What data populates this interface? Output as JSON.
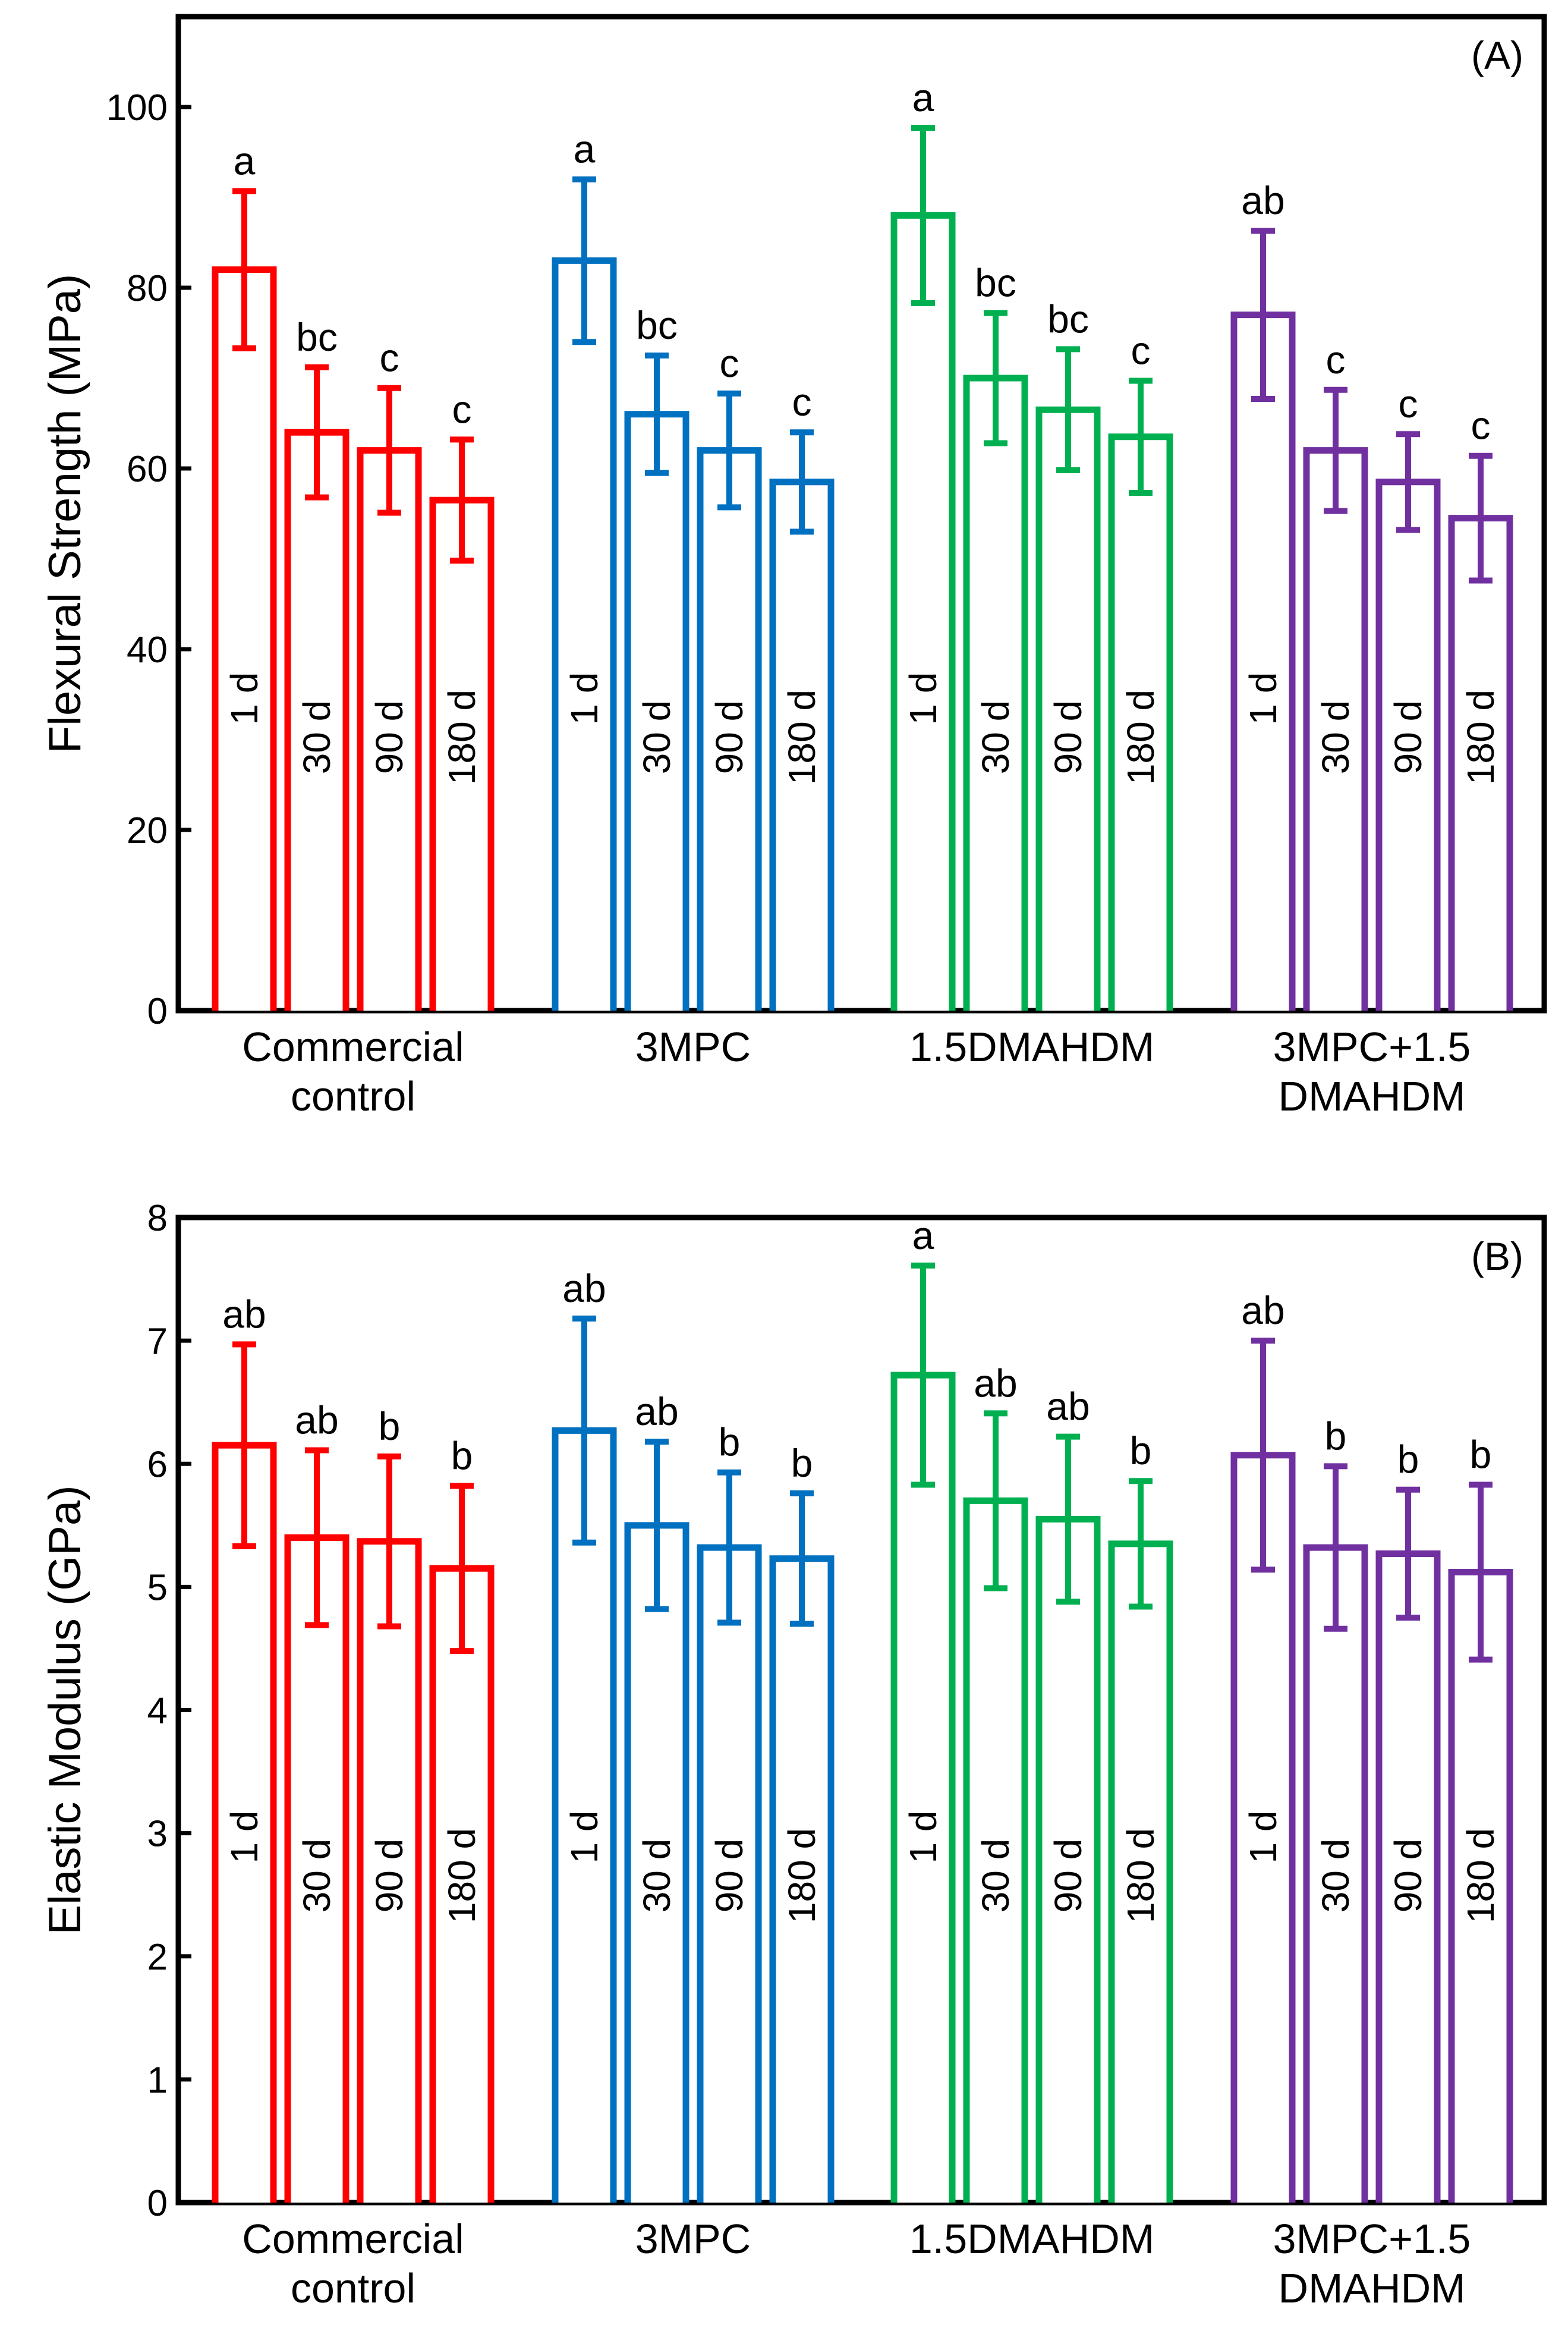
{
  "colors": {
    "Commercial control": "#ff0000",
    "3MPC": "#0070c0",
    "1.5DMAHDM": "#00b050",
    "3MPC+1.5 DMAHDM": "#7030a0"
  },
  "chart_data": [
    {
      "type": "bar",
      "panel": "(A)",
      "ylabel": "Flexural Strength (MPa)",
      "ylim": [
        0,
        110
      ],
      "yticks": [
        "0",
        "20",
        "40",
        "60",
        "80",
        "100"
      ],
      "groups": [
        {
          "name_lines": [
            "Commercial",
            "control"
          ],
          "color_key": "Commercial control"
        },
        {
          "name_lines": [
            "3MPC"
          ],
          "color_key": "3MPC"
        },
        {
          "name_lines": [
            "1.5DMAHDM"
          ],
          "color_key": "1.5DMAHDM"
        },
        {
          "name_lines": [
            "3MPC+1.5",
            "DMAHDM"
          ],
          "color_key": "3MPC+1.5 DMAHDM"
        }
      ],
      "bar_labels": [
        "1 d",
        "30 d",
        "90 d",
        "180 d"
      ],
      "series": [
        {
          "name": "Commercial control",
          "values": [
            82,
            64,
            62,
            56.5
          ],
          "errors": [
            8.7,
            7.2,
            6.9,
            6.7
          ],
          "sig": [
            "a",
            "bc",
            "c",
            "c"
          ]
        },
        {
          "name": "3MPC",
          "values": [
            83,
            66,
            62,
            58.5
          ],
          "errors": [
            9,
            6.5,
            6.3,
            5.5
          ],
          "sig": [
            "a",
            "bc",
            "c",
            "c"
          ]
        },
        {
          "name": "1.5DMAHDM",
          "values": [
            88,
            70,
            66.5,
            63.5
          ],
          "errors": [
            9.7,
            7.2,
            6.7,
            6.2
          ],
          "sig": [
            "a",
            "bc",
            "bc",
            "c"
          ]
        },
        {
          "name": "3MPC+1.5 DMAHDM",
          "values": [
            77,
            62,
            58.5,
            54.5
          ],
          "errors": [
            9.3,
            6.7,
            5.3,
            6.9
          ],
          "sig": [
            "ab",
            "c",
            "c",
            "c"
          ]
        }
      ]
    },
    {
      "type": "bar",
      "panel": "(B)",
      "ylabel": "Elastic Modulus (GPa)",
      "ylim": [
        0,
        8
      ],
      "yticks": [
        "0",
        "1",
        "2",
        "3",
        "4",
        "5",
        "6",
        "7",
        "8"
      ],
      "groups": [
        {
          "name_lines": [
            "Commercial",
            "control"
          ],
          "color_key": "Commercial control"
        },
        {
          "name_lines": [
            "3MPC"
          ],
          "color_key": "3MPC"
        },
        {
          "name_lines": [
            "1.5DMAHDM"
          ],
          "color_key": "1.5DMAHDM"
        },
        {
          "name_lines": [
            "3MPC+1.5",
            "DMAHDM"
          ],
          "color_key": "3MPC+1.5 DMAHDM"
        }
      ],
      "bar_labels": [
        "1 d",
        "30 d",
        "90 d",
        "180 d"
      ],
      "series": [
        {
          "name": "Commercial control",
          "values": [
            6.15,
            5.4,
            5.37,
            5.15
          ],
          "errors": [
            0.82,
            0.71,
            0.69,
            0.67
          ],
          "sig": [
            "ab",
            "ab",
            "b",
            "b"
          ]
        },
        {
          "name": "3MPC",
          "values": [
            6.27,
            5.5,
            5.32,
            5.23
          ],
          "errors": [
            0.91,
            0.68,
            0.61,
            0.53
          ],
          "sig": [
            "ab",
            "ab",
            "b",
            "b"
          ]
        },
        {
          "name": "1.5DMAHDM",
          "values": [
            6.72,
            5.7,
            5.55,
            5.35
          ],
          "errors": [
            0.89,
            0.71,
            0.67,
            0.51
          ],
          "sig": [
            "a",
            "ab",
            "ab",
            "b"
          ]
        },
        {
          "name": "3MPC+1.5 DMAHDM",
          "values": [
            6.07,
            5.32,
            5.27,
            5.12
          ],
          "errors": [
            0.93,
            0.66,
            0.52,
            0.71
          ],
          "sig": [
            "ab",
            "b",
            "b",
            "b"
          ]
        }
      ]
    }
  ]
}
